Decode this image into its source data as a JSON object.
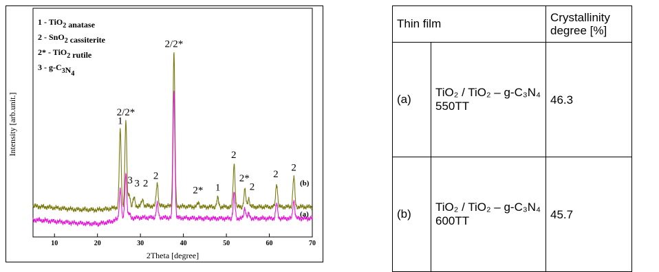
{
  "chart_data": {
    "type": "line",
    "xlabel": "2Theta [degree]",
    "ylabel": "Intensity [arb.unit.]",
    "xlim": [
      5,
      70
    ],
    "x_ticks": [
      "10",
      "20",
      "30",
      "40",
      "50",
      "60",
      "70"
    ],
    "legend": [
      {
        "num": "1",
        "sub": "",
        "text": " - TiO",
        "sub2": "2",
        "rest": " anatase"
      },
      {
        "num": "2",
        "sub": "",
        "text": " - SnO",
        "sub2": "2",
        "rest": " cassiterite"
      },
      {
        "num": "2*",
        "sub": "",
        "text": " - TiO",
        "sub2": "2",
        "rest": " rutile"
      },
      {
        "num": "3",
        "sub": "",
        "text": " - g-C",
        "sub2": "3",
        "rest": "N",
        "sub3": "4"
      }
    ],
    "series": [
      {
        "name": "(b)",
        "color": "#7a7a10",
        "baseline": [
          [
            5,
            0.42
          ],
          [
            10,
            0.38
          ],
          [
            15,
            0.34
          ],
          [
            20,
            0.33
          ],
          [
            23,
            0.36
          ],
          [
            25,
            0.4
          ],
          [
            30,
            0.42
          ],
          [
            35,
            0.42
          ],
          [
            40,
            0.41
          ],
          [
            45,
            0.4
          ],
          [
            50,
            0.4
          ],
          [
            55,
            0.4
          ],
          [
            60,
            0.4
          ],
          [
            65,
            0.4
          ],
          [
            70,
            0.4
          ]
        ],
        "peaks": [
          [
            25.3,
            1.8
          ],
          [
            26.6,
            2.0
          ],
          [
            27.4,
            0.3
          ],
          [
            28.5,
            0.2
          ],
          [
            30.5,
            0.15
          ],
          [
            33.9,
            0.55
          ],
          [
            37.8,
            3.6
          ],
          [
            43.5,
            0.1
          ],
          [
            48.0,
            0.2
          ],
          [
            51.8,
            1.0
          ],
          [
            54.3,
            0.4
          ],
          [
            55.2,
            0.2
          ],
          [
            61.7,
            0.55
          ],
          [
            65.7,
            0.7
          ]
        ]
      },
      {
        "name": "(a)",
        "color": "#e619d8",
        "baseline": [
          [
            5,
            0.1
          ],
          [
            10,
            0.06
          ],
          [
            15,
            0.02
          ],
          [
            20,
            0.0
          ],
          [
            23,
            0.05
          ],
          [
            25,
            0.12
          ],
          [
            30,
            0.15
          ],
          [
            35,
            0.15
          ],
          [
            40,
            0.14
          ],
          [
            45,
            0.13
          ],
          [
            50,
            0.13
          ],
          [
            55,
            0.13
          ],
          [
            60,
            0.13
          ],
          [
            65,
            0.13
          ],
          [
            70,
            0.13
          ]
        ],
        "peaks": [
          [
            25.3,
            0.7
          ],
          [
            26.6,
            1.05
          ],
          [
            27.4,
            0.1
          ],
          [
            33.9,
            0.32
          ],
          [
            37.8,
            2.95
          ],
          [
            51.8,
            0.58
          ],
          [
            54.3,
            0.25
          ],
          [
            55.2,
            0.1
          ],
          [
            61.7,
            0.34
          ],
          [
            65.7,
            0.42
          ]
        ]
      }
    ],
    "peak_labels": [
      {
        "text": "1",
        "x": 25.3,
        "y": 2.35
      },
      {
        "text": "2/2*",
        "x": 26.6,
        "y": 2.55
      },
      {
        "text": "2/2*",
        "x": 37.8,
        "y": 4.15
      },
      {
        "text": "3",
        "x": 27.6,
        "y": 0.95
      },
      {
        "text": "3",
        "x": 29.2,
        "y": 0.88
      },
      {
        "text": "2",
        "x": 31.2,
        "y": 0.88
      },
      {
        "text": "2",
        "x": 33.6,
        "y": 1.06
      },
      {
        "text": "2*",
        "x": 43.4,
        "y": 0.72
      },
      {
        "text": "1",
        "x": 48.0,
        "y": 0.78
      },
      {
        "text": "2",
        "x": 51.7,
        "y": 1.55
      },
      {
        "text": "2*",
        "x": 54.2,
        "y": 1.0
      },
      {
        "text": "2",
        "x": 56.0,
        "y": 0.8
      },
      {
        "text": "2",
        "x": 61.5,
        "y": 1.1
      },
      {
        "text": "2",
        "x": 65.7,
        "y": 1.25
      }
    ]
  },
  "table": {
    "header": {
      "thin_film": "Thin film",
      "crystallinity": "Crystallinity degree [%]"
    },
    "rows": [
      {
        "label": "(a)",
        "film": "TiO₂ / TiO₂ – g-C₃N₄ 550TT",
        "value": "46.3"
      },
      {
        "label": "(b)",
        "film": "TiO₂ / TiO₂ – g-C₃N₄ 600TT",
        "value": "45.7"
      }
    ]
  }
}
